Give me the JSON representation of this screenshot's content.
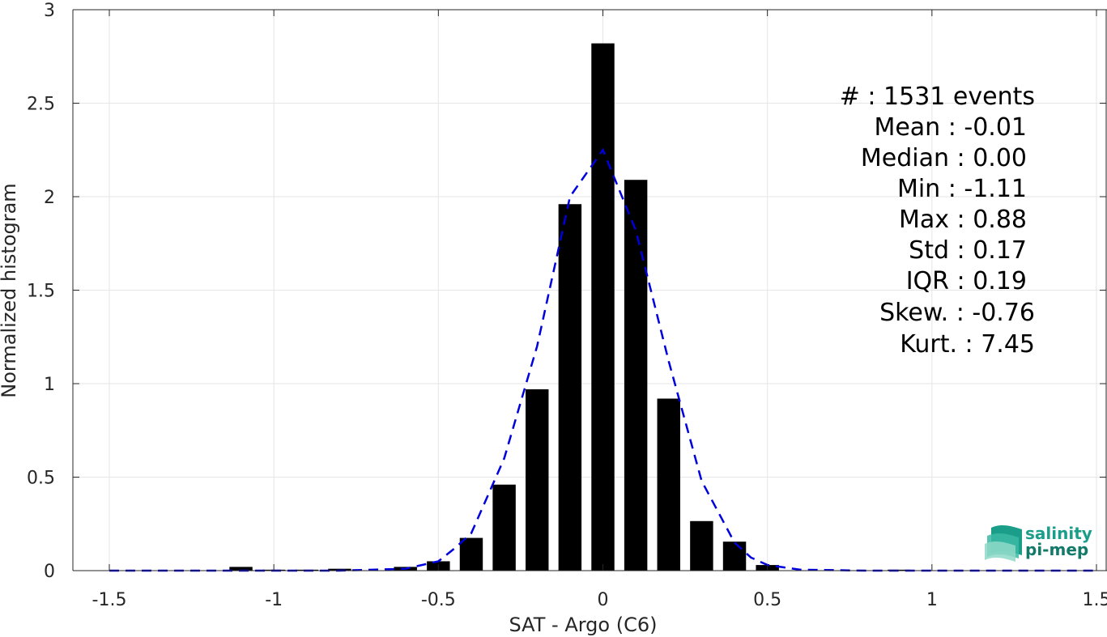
{
  "chart_data": {
    "type": "bar",
    "xlabel": "SAT - Argo (C6)",
    "ylabel": "Normalized histogram",
    "xlim": [
      -1.5,
      1.5
    ],
    "ylim": [
      0,
      3
    ],
    "xticks": [
      -1.5,
      -1,
      -0.5,
      0,
      0.5,
      1,
      1.5
    ],
    "xtick_labels": [
      "-1.5",
      "-1",
      "-0.5",
      "0",
      "0.5",
      "1",
      "1.5"
    ],
    "yticks": [
      0,
      0.5,
      1,
      1.5,
      2,
      2.5,
      3
    ],
    "ytick_labels": [
      "0",
      "0.5",
      "1",
      "1.5",
      "2",
      "2.5",
      "3"
    ],
    "grid": true,
    "bar_color": "#000000",
    "bar_width": 0.07,
    "bars": {
      "x": [
        -1.1,
        -1.0,
        -0.9,
        -0.8,
        -0.6,
        -0.5,
        -0.4,
        -0.3,
        -0.2,
        -0.1,
        0.0,
        0.1,
        0.2,
        0.3,
        0.4,
        0.5,
        0.9
      ],
      "values": [
        0.02,
        0.005,
        0.005,
        0.01,
        0.02,
        0.05,
        0.175,
        0.46,
        0.97,
        1.96,
        2.82,
        2.09,
        0.92,
        0.265,
        0.155,
        0.03,
        0.005
      ]
    },
    "fit_curve": {
      "color": "#0000dd",
      "style": "dashed",
      "x": [
        -1.5,
        -1.2,
        -1.0,
        -0.8,
        -0.7,
        -0.6,
        -0.5,
        -0.45,
        -0.4,
        -0.3,
        -0.2,
        -0.1,
        0.0,
        0.1,
        0.2,
        0.3,
        0.4,
        0.45,
        0.5,
        0.6,
        0.8,
        1.0,
        1.2,
        1.5
      ],
      "y": [
        0,
        0,
        0,
        0,
        0.005,
        0.01,
        0.05,
        0.12,
        0.2,
        0.6,
        1.2,
        2.0,
        2.25,
        1.82,
        1.12,
        0.48,
        0.15,
        0.07,
        0.03,
        0.005,
        0,
        0,
        0,
        0
      ]
    }
  },
  "stats": [
    "#  : 1531 events",
    "Mean : -0.01",
    "Median : 0.00",
    "Min : -1.11",
    "Max : 0.88",
    "Std : 0.17",
    "IQR : 0.19",
    "Skew. : -0.76",
    "Kurt. : 7.45"
  ],
  "logo": {
    "line1": "salinity",
    "line2": "pi-mep",
    "color_primary": "#1a9e8a",
    "color_dark": "#137a6a"
  },
  "colors": {
    "axis": "#262626",
    "grid": "#e6e6e6",
    "background": "#ffffff"
  }
}
